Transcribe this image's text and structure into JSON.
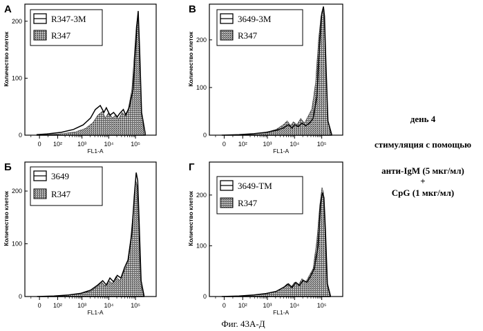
{
  "figure_caption": "Фиг. 43А-Д",
  "side_text": {
    "line1": "день 4",
    "line2": "стимуляция с помощью",
    "line3": "анти-IgM (5 мкг/мл)",
    "line4": "+",
    "line5": "CpG (1 мкг/мл)"
  },
  "chart_data": [
    {
      "panel": "A",
      "type": "area",
      "xscale": "log-biexponential",
      "xlabel": "FL1-A",
      "ylabel": "Количество клеток",
      "xticks": [
        "0",
        "10²",
        "10³",
        "10⁴",
        "10⁵"
      ],
      "yticks": [
        0,
        100,
        200
      ],
      "ylim": [
        0,
        230
      ],
      "series": [
        {
          "name": "R347-3M",
          "style": "outline",
          "x": [
            0.5,
            0.9,
            1.5,
            2,
            2.4,
            2.7,
            2.9,
            3.1,
            3.25,
            3.35,
            3.5,
            3.65,
            3.8,
            3.9,
            4.05,
            4.15,
            4.3,
            4.45,
            4.55,
            4.62,
            4.66,
            4.72,
            4.8,
            4.95
          ],
          "y": [
            1,
            2,
            5,
            10,
            18,
            30,
            45,
            52,
            40,
            48,
            35,
            40,
            32,
            38,
            45,
            35,
            50,
            80,
            150,
            200,
            218,
            150,
            40,
            3
          ]
        },
        {
          "name": "R347",
          "style": "filled",
          "x": [
            0.5,
            1,
            1.6,
            2.1,
            2.5,
            2.8,
            3,
            3.2,
            3.3,
            3.45,
            3.6,
            3.75,
            3.85,
            4,
            4.1,
            4.25,
            4.4,
            4.5,
            4.58,
            4.64,
            4.7,
            4.78,
            4.9
          ],
          "y": [
            0,
            1,
            3,
            6,
            12,
            22,
            35,
            42,
            30,
            40,
            30,
            36,
            28,
            40,
            35,
            45,
            80,
            140,
            190,
            210,
            160,
            50,
            2
          ]
        }
      ]
    },
    {
      "panel": "B",
      "type": "area",
      "xscale": "log-biexponential",
      "xlabel": "FL1-A",
      "ylabel": "Количество клеток",
      "xticks": [
        "0",
        "10²",
        "10³",
        "10⁴",
        "10⁵"
      ],
      "yticks": [
        0,
        100,
        200
      ],
      "ylim": [
        0,
        275
      ],
      "series": [
        {
          "name": "3649-3M",
          "style": "outline",
          "x": [
            0.5,
            1.2,
            1.8,
            2.3,
            2.7,
            3,
            3.2,
            3.35,
            3.45,
            3.6,
            3.75,
            3.9,
            4.05,
            4.2,
            4.35,
            4.45,
            4.55,
            4.62,
            4.66,
            4.72,
            4.8,
            4.95
          ],
          "y": [
            0,
            1,
            3,
            6,
            10,
            15,
            22,
            15,
            22,
            18,
            25,
            20,
            25,
            35,
            80,
            180,
            255,
            270,
            250,
            150,
            30,
            2
          ]
        },
        {
          "name": "R347",
          "style": "filled",
          "x": [
            0.5,
            1.2,
            1.8,
            2.3,
            2.7,
            3,
            3.15,
            3.3,
            3.4,
            3.55,
            3.7,
            3.85,
            4,
            4.15,
            4.3,
            4.42,
            4.52,
            4.6,
            4.65,
            4.72,
            4.8,
            4.92
          ],
          "y": [
            0,
            1,
            3,
            6,
            12,
            22,
            30,
            20,
            28,
            22,
            35,
            25,
            40,
            55,
            110,
            200,
            250,
            262,
            240,
            140,
            30,
            2
          ]
        }
      ]
    },
    {
      "panel": "Б",
      "type": "area",
      "xscale": "log-biexponential",
      "xlabel": "FL1-A",
      "ylabel": "Количество клеток",
      "xticks": [
        "0",
        "10²",
        "10³",
        "10⁴",
        "10⁵"
      ],
      "yticks": [
        0,
        100,
        200
      ],
      "ylim": [
        0,
        255
      ],
      "series": [
        {
          "name": "3649",
          "style": "outline",
          "x": [
            0.5,
            1.2,
            1.8,
            2.3,
            2.7,
            3,
            3.2,
            3.35,
            3.5,
            3.65,
            3.8,
            3.95,
            4.1,
            4.25,
            4.4,
            4.5,
            4.58,
            4.64,
            4.7,
            4.78,
            4.9
          ],
          "y": [
            0,
            1,
            3,
            6,
            12,
            22,
            30,
            22,
            35,
            28,
            40,
            35,
            55,
            70,
            120,
            190,
            235,
            220,
            140,
            30,
            2
          ]
        },
        {
          "name": "R347",
          "style": "filled",
          "x": [
            0.5,
            1.2,
            1.8,
            2.3,
            2.7,
            3,
            3.15,
            3.3,
            3.45,
            3.6,
            3.75,
            3.9,
            4.05,
            4.2,
            4.35,
            4.47,
            4.56,
            4.62,
            4.68,
            4.76,
            4.88
          ],
          "y": [
            0,
            1,
            3,
            6,
            10,
            20,
            28,
            20,
            30,
            25,
            38,
            30,
            45,
            60,
            110,
            170,
            220,
            210,
            130,
            25,
            2
          ]
        }
      ]
    },
    {
      "panel": "Г",
      "type": "area",
      "xscale": "log-biexponential",
      "xlabel": "FL1-A",
      "ylabel": "Количество клеток",
      "xticks": [
        "0",
        "10²",
        "10³",
        "10⁴",
        "10⁵"
      ],
      "yticks": [
        0,
        100,
        200
      ],
      "ylim": [
        0,
        265
      ],
      "series": [
        {
          "name": "3649-TM",
          "style": "outline",
          "x": [
            0.5,
            1.2,
            1.8,
            2.3,
            2.7,
            3,
            3.2,
            3.35,
            3.5,
            3.65,
            3.8,
            3.95,
            4.1,
            4.25,
            4.4,
            4.5,
            4.58,
            4.64,
            4.7,
            4.78,
            4.9
          ],
          "y": [
            0,
            1,
            3,
            6,
            10,
            18,
            25,
            18,
            28,
            22,
            32,
            28,
            40,
            55,
            100,
            180,
            205,
            195,
            130,
            25,
            2
          ]
        },
        {
          "name": "R347",
          "style": "filled",
          "x": [
            0.5,
            1.2,
            1.8,
            2.3,
            2.7,
            3,
            3.15,
            3.3,
            3.45,
            3.6,
            3.75,
            3.9,
            4.05,
            4.2,
            4.35,
            4.47,
            4.56,
            4.62,
            4.68,
            4.76,
            4.88
          ],
          "y": [
            0,
            1,
            3,
            6,
            10,
            18,
            25,
            18,
            28,
            22,
            35,
            28,
            42,
            55,
            110,
            180,
            215,
            205,
            130,
            25,
            2
          ]
        }
      ]
    }
  ]
}
